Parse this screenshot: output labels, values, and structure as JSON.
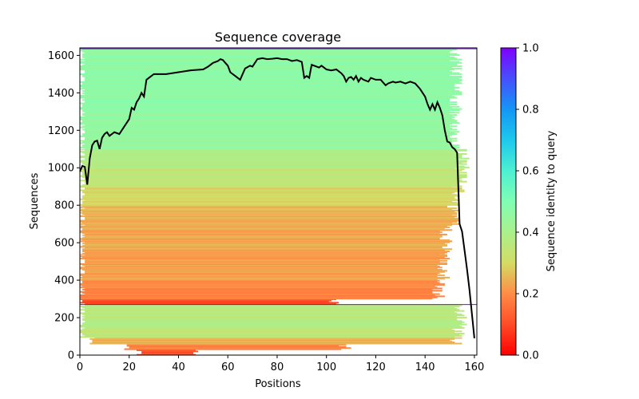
{
  "chart_data": {
    "type": "heatmap",
    "title": "Sequence coverage",
    "xlabel": "Positions",
    "ylabel": "Sequences",
    "xlim": [
      0,
      161
    ],
    "ylim": [
      0,
      1640
    ],
    "x_ticks": [
      0,
      20,
      40,
      60,
      80,
      100,
      120,
      140,
      160
    ],
    "y_ticks": [
      0,
      200,
      400,
      600,
      800,
      1000,
      1200,
      1400,
      1600
    ],
    "colorbar": {
      "label": "Sequence identity to query",
      "range": [
        0.0,
        1.0
      ],
      "ticks": [
        0.0,
        0.2,
        0.4,
        0.6,
        0.8,
        1.0
      ],
      "tick_labels": [
        "0.0",
        "0.2",
        "0.4",
        "0.6",
        "0.8",
        "1.0"
      ],
      "colormap": "rainbow_r"
    },
    "coverage_bands": [
      {
        "y0": 0,
        "y1": 30,
        "identity": 0.1,
        "x_start": 23,
        "x_end": 50
      },
      {
        "y0": 30,
        "y1": 60,
        "identity": 0.18,
        "x_start": 18,
        "x_end": 110
      },
      {
        "y0": 60,
        "y1": 95,
        "identity": 0.24,
        "x_start": 4,
        "x_end": 155
      },
      {
        "y0": 95,
        "y1": 150,
        "identity": 0.35,
        "x_start": 0,
        "x_end": 156
      },
      {
        "y0": 150,
        "y1": 270,
        "identity": 0.37,
        "x_start": 0,
        "x_end": 157
      },
      {
        "y0": 272,
        "y1": 300,
        "identity": 0.1,
        "x_start": 0,
        "x_end": 106
      },
      {
        "y0": 300,
        "y1": 400,
        "identity": 0.19,
        "x_start": 0,
        "x_end": 148
      },
      {
        "y0": 400,
        "y1": 540,
        "identity": 0.22,
        "x_start": 0,
        "x_end": 150
      },
      {
        "y0": 540,
        "y1": 680,
        "identity": 0.23,
        "x_start": 0,
        "x_end": 151
      },
      {
        "y0": 680,
        "y1": 800,
        "identity": 0.25,
        "x_start": 0,
        "x_end": 154
      },
      {
        "y0": 800,
        "y1": 900,
        "identity": 0.3,
        "x_start": 0,
        "x_end": 156
      },
      {
        "y0": 900,
        "y1": 1000,
        "identity": 0.35,
        "x_start": 0,
        "x_end": 157
      },
      {
        "y0": 1000,
        "y1": 1100,
        "identity": 0.38,
        "x_start": 0,
        "x_end": 158
      },
      {
        "y0": 1100,
        "y1": 1300,
        "identity": 0.45,
        "x_start": 0,
        "x_end": 155
      },
      {
        "y0": 1300,
        "y1": 1640,
        "identity": 0.47,
        "x_start": 0,
        "x_end": 155
      }
    ],
    "highlight_lines": [
      {
        "y": 270,
        "identity": 1.0
      },
      {
        "y": 1635,
        "identity": 1.0
      }
    ],
    "coverage_line": {
      "x": [
        0,
        1,
        2,
        3,
        4,
        5,
        6,
        7,
        8,
        9,
        10,
        11,
        12,
        14,
        16,
        18,
        20,
        21,
        22,
        23,
        24,
        25,
        26,
        27,
        28,
        30,
        35,
        40,
        45,
        50,
        52,
        54,
        56,
        57,
        58,
        59,
        60,
        61,
        62,
        63,
        65,
        67,
        69,
        70,
        72,
        74,
        76,
        78,
        80,
        82,
        84,
        86,
        88,
        90,
        91,
        92,
        93,
        94,
        95,
        96,
        97,
        98,
        100,
        102,
        104,
        106,
        107,
        108,
        109,
        110,
        111,
        112,
        113,
        114,
        115,
        116,
        117,
        118,
        120,
        122,
        124,
        125,
        126,
        127,
        128,
        130,
        132,
        134,
        136,
        138,
        140,
        141,
        142,
        143,
        144,
        145,
        146,
        147,
        148,
        149,
        150,
        151,
        152,
        153,
        154,
        155,
        156,
        157,
        158,
        159,
        160
      ],
      "y": [
        980,
        1010,
        1005,
        910,
        1050,
        1120,
        1140,
        1145,
        1100,
        1160,
        1180,
        1190,
        1170,
        1190,
        1180,
        1220,
        1260,
        1320,
        1310,
        1350,
        1370,
        1400,
        1380,
        1470,
        1480,
        1500,
        1500,
        1510,
        1520,
        1525,
        1540,
        1560,
        1570,
        1580,
        1575,
        1560,
        1545,
        1510,
        1500,
        1490,
        1470,
        1530,
        1545,
        1540,
        1580,
        1585,
        1580,
        1582,
        1585,
        1580,
        1580,
        1570,
        1575,
        1565,
        1480,
        1490,
        1480,
        1550,
        1545,
        1540,
        1535,
        1545,
        1525,
        1520,
        1525,
        1505,
        1490,
        1460,
        1480,
        1485,
        1470,
        1490,
        1460,
        1480,
        1470,
        1465,
        1460,
        1480,
        1470,
        1470,
        1440,
        1450,
        1455,
        1460,
        1455,
        1460,
        1450,
        1460,
        1450,
        1420,
        1380,
        1340,
        1310,
        1340,
        1310,
        1350,
        1320,
        1280,
        1200,
        1140,
        1135,
        1110,
        1100,
        1080,
        700,
        660,
        560,
        460,
        350,
        220,
        90
      ]
    }
  }
}
